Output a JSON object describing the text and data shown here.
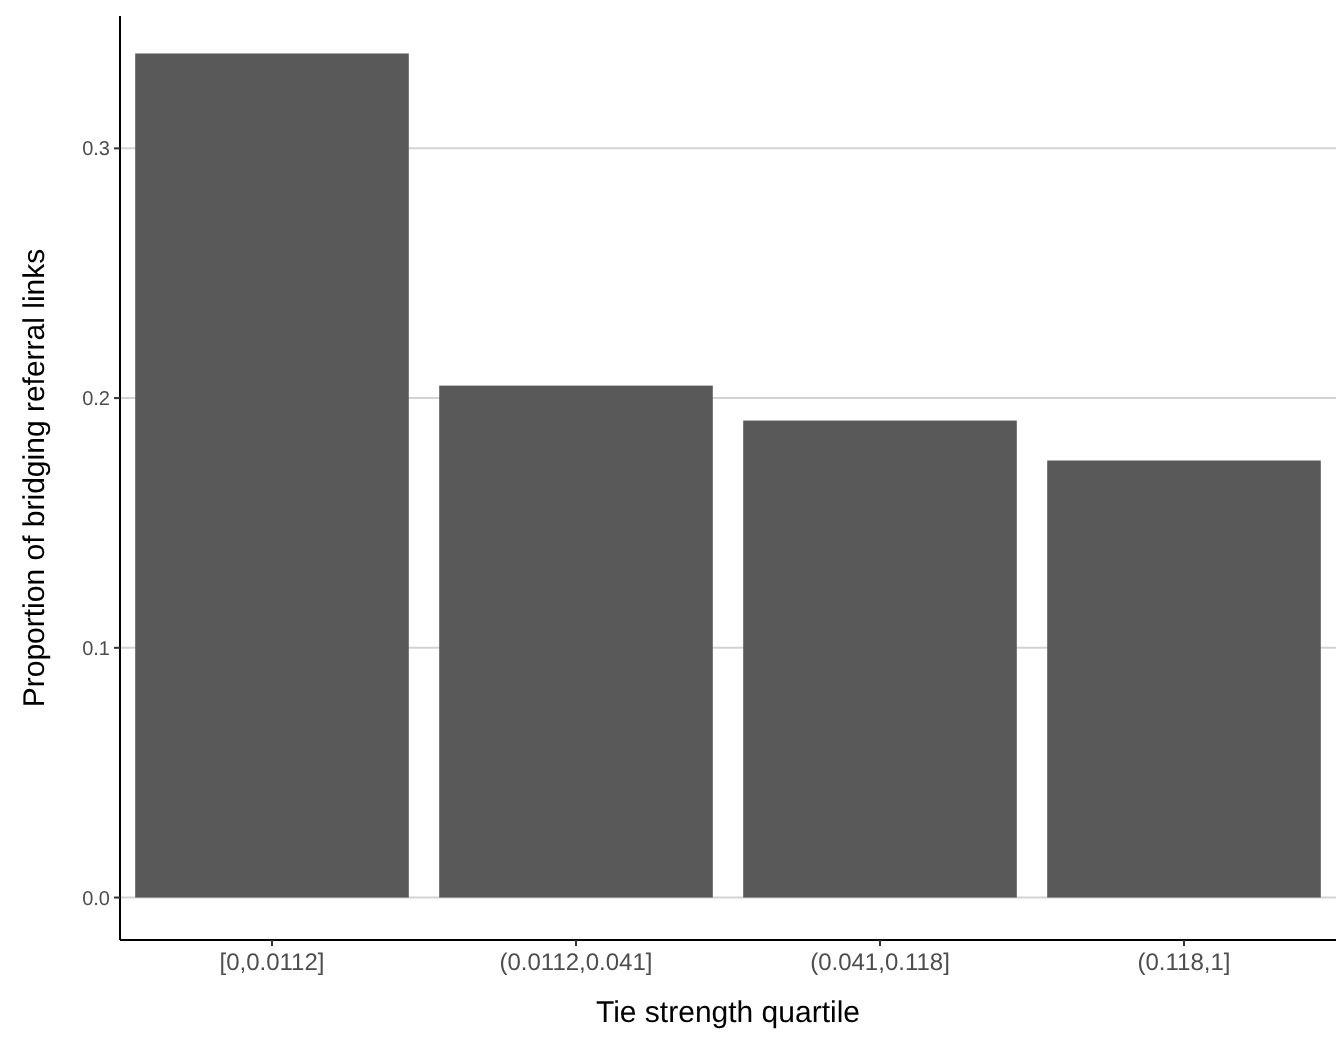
{
  "chart_data": {
    "type": "bar",
    "xlabel": "Tie strength quartile",
    "ylabel": "Proportion of bridging referral links",
    "categories": [
      "[0,0.0112]",
      "(0.0112,0.041]",
      "(0.041,0.118]",
      "(0.118,1]"
    ],
    "values": [
      0.338,
      0.205,
      0.191,
      0.175
    ],
    "color": "#595959",
    "ylim": [
      -0.017,
      0.353
    ],
    "yticks": [
      {
        "value": 0,
        "label": "0.0"
      },
      0.1,
      0.2,
      0.3
    ],
    "grid": "y"
  }
}
